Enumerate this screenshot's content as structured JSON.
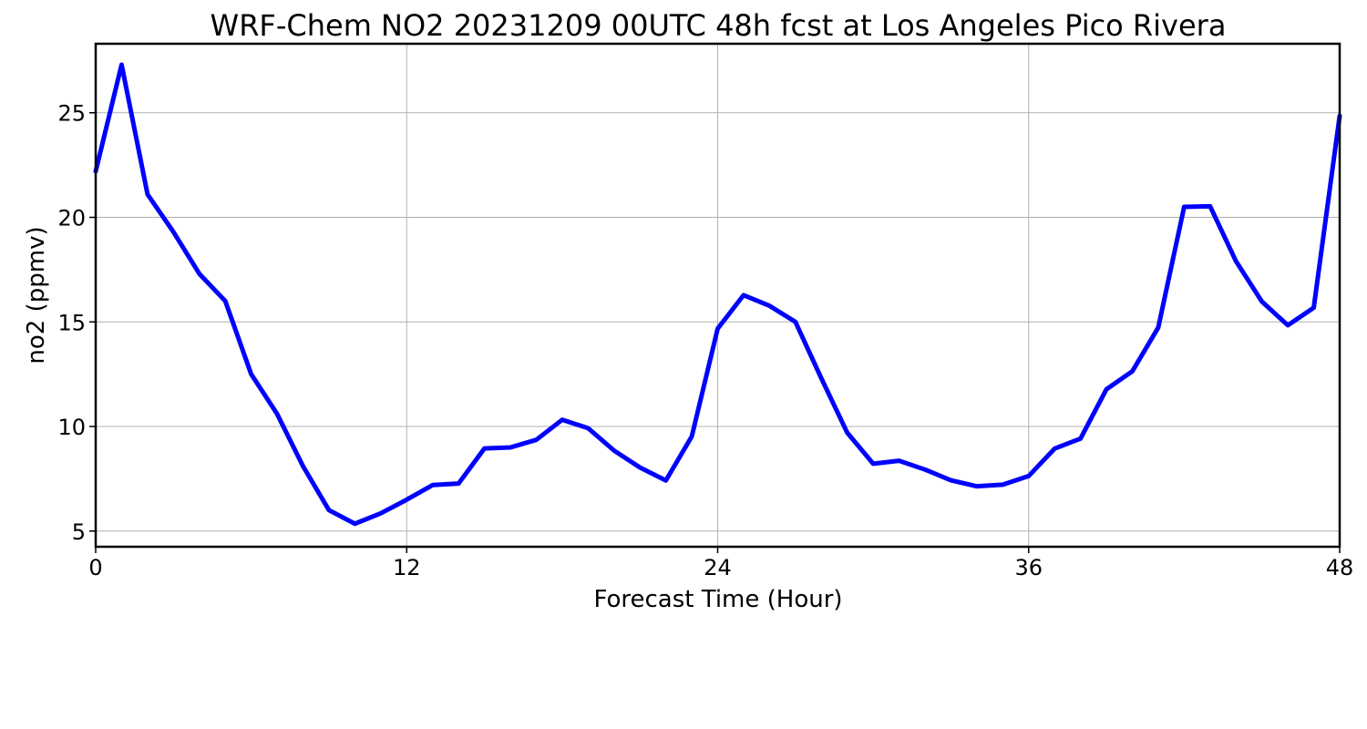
{
  "chart_data": {
    "type": "line",
    "title": "WRF-Chem NO2  20231209 00UTC 48h fcst at Los Angeles Pico Rivera",
    "xlabel": "Forecast Time (Hour)",
    "ylabel": "no2  (ppmv)",
    "xlim": [
      0,
      48
    ],
    "ylim": [
      4.25,
      28.3
    ],
    "xticks": [
      0,
      12,
      24,
      36,
      48
    ],
    "yticks": [
      5,
      10,
      15,
      20,
      25
    ],
    "grid": true,
    "line_color": "#0000ff",
    "series": [
      {
        "x": [
          0,
          1,
          2,
          3,
          4,
          5,
          6,
          7,
          8,
          9,
          10,
          11,
          12,
          13,
          14,
          15,
          16,
          17,
          18,
          19,
          20,
          21,
          22,
          23,
          24,
          25,
          26,
          27,
          28,
          29,
          30,
          31,
          32,
          33,
          34,
          35,
          36,
          37,
          38,
          39,
          40,
          41,
          42,
          43,
          44,
          45,
          46,
          47,
          48
        ],
        "values": [
          22.2,
          27.3,
          21.1,
          19.3,
          17.3,
          16.0,
          12.5,
          10.6,
          8.1,
          6.0,
          5.35,
          5.85,
          6.5,
          7.2,
          7.27,
          8.95,
          9.0,
          9.36,
          10.32,
          9.92,
          8.85,
          8.04,
          7.42,
          9.52,
          14.68,
          16.28,
          15.77,
          15.0,
          12.3,
          9.7,
          8.22,
          8.36,
          7.94,
          7.43,
          7.14,
          7.22,
          7.63,
          8.94,
          9.42,
          11.78,
          12.64,
          14.73,
          20.5,
          20.53,
          17.9,
          15.97,
          14.84,
          15.68,
          24.85
        ]
      }
    ]
  }
}
